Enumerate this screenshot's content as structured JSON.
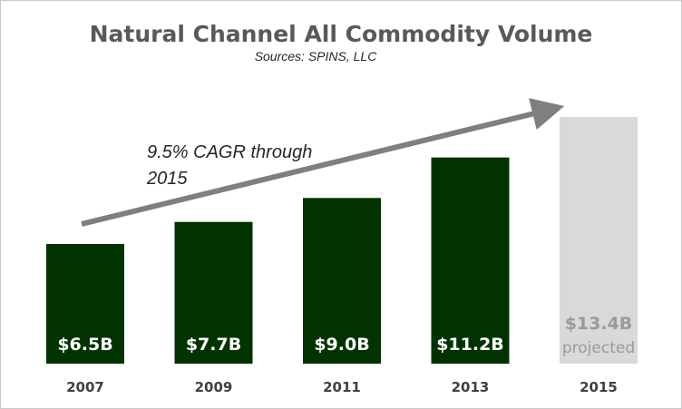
{
  "chart_data": {
    "type": "bar",
    "title": "Natural Channel All Commodity Volume",
    "subtitle": "Sources: SPINS, LLC",
    "categories": [
      "2007",
      "2009",
      "2011",
      "2013",
      "2015"
    ],
    "values": [
      6.5,
      7.7,
      9.0,
      11.2,
      13.4
    ],
    "value_labels": [
      "$6.5B",
      "$7.7B",
      "$9.0B",
      "$11.2B",
      "$13.4B"
    ],
    "projected": [
      false,
      false,
      false,
      false,
      true
    ],
    "projected_label": "projected",
    "annotation_line1": "9.5% CAGR through",
    "annotation_line2": "2015",
    "xlabel": "",
    "ylabel": "",
    "grid": false,
    "legend": "none",
    "colors": {
      "actual": "#003300",
      "projected": "#d9d9d9",
      "arrow": "#7f7f7f"
    }
  }
}
